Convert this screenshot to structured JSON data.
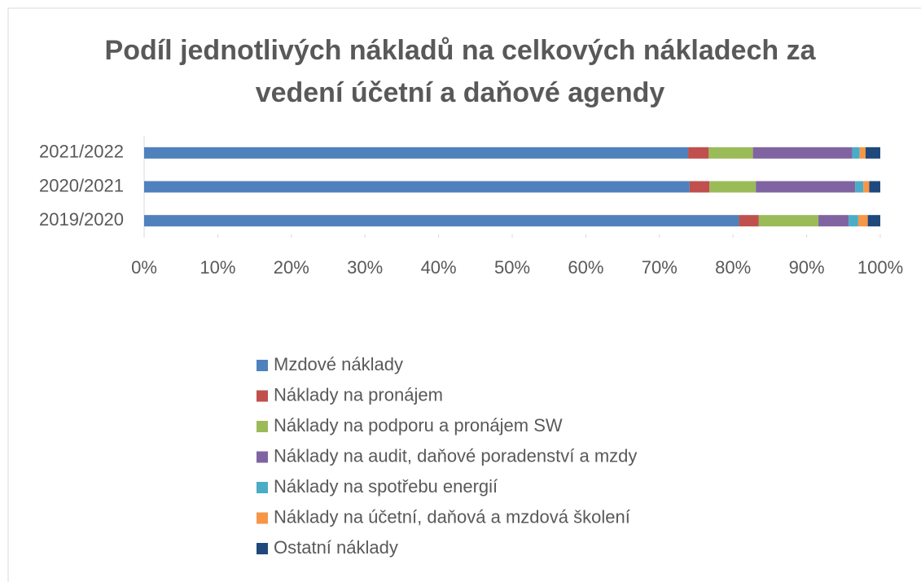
{
  "chart_data": {
    "type": "bar",
    "orientation": "horizontal",
    "stacked": true,
    "title": "Podíl jednotlivých nákladů na celkových nákladech za vedení účetní a daňové agendy",
    "categories": [
      "2019/2020",
      "2020/2021",
      "2021/2022"
    ],
    "series": [
      {
        "name": "Mzdové náklady",
        "color": "#4f81bd",
        "values": [
          80.8,
          74.1,
          73.9
        ]
      },
      {
        "name": "Náklady na pronájem",
        "color": "#c0504d",
        "values": [
          2.7,
          2.7,
          2.8
        ]
      },
      {
        "name": "Náklady na podporu a pronájem SW",
        "color": "#9bbb59",
        "values": [
          8.1,
          6.3,
          6.0
        ]
      },
      {
        "name": "Náklady na audit, daňové poradenství a mzdy",
        "color": "#8064a2",
        "values": [
          4.1,
          13.5,
          13.5
        ]
      },
      {
        "name": "Náklady na spotřebu energií",
        "color": "#4bacc6",
        "values": [
          1.3,
          1.1,
          1.0
        ]
      },
      {
        "name": "Náklady na účetní, daňová a mzdová školení",
        "color": "#f79646",
        "values": [
          1.3,
          0.8,
          0.8
        ]
      },
      {
        "name": "Ostatní náklady",
        "color": "#1f497d",
        "values": [
          1.7,
          1.5,
          2.0
        ]
      }
    ],
    "xlim": [
      0,
      100
    ],
    "xticks": [
      {
        "value": 0,
        "label": "0%"
      },
      {
        "value": 10,
        "label": "10%"
      },
      {
        "value": 20,
        "label": "20%"
      },
      {
        "value": 30,
        "label": "30%"
      },
      {
        "value": 40,
        "label": "40%"
      },
      {
        "value": 50,
        "label": "50%"
      },
      {
        "value": 60,
        "label": "60%"
      },
      {
        "value": 70,
        "label": "70%"
      },
      {
        "value": 80,
        "label": "80%"
      },
      {
        "value": 90,
        "label": "90%"
      },
      {
        "value": 100,
        "label": "100%"
      }
    ],
    "grid": false,
    "legend": "bottom"
  }
}
